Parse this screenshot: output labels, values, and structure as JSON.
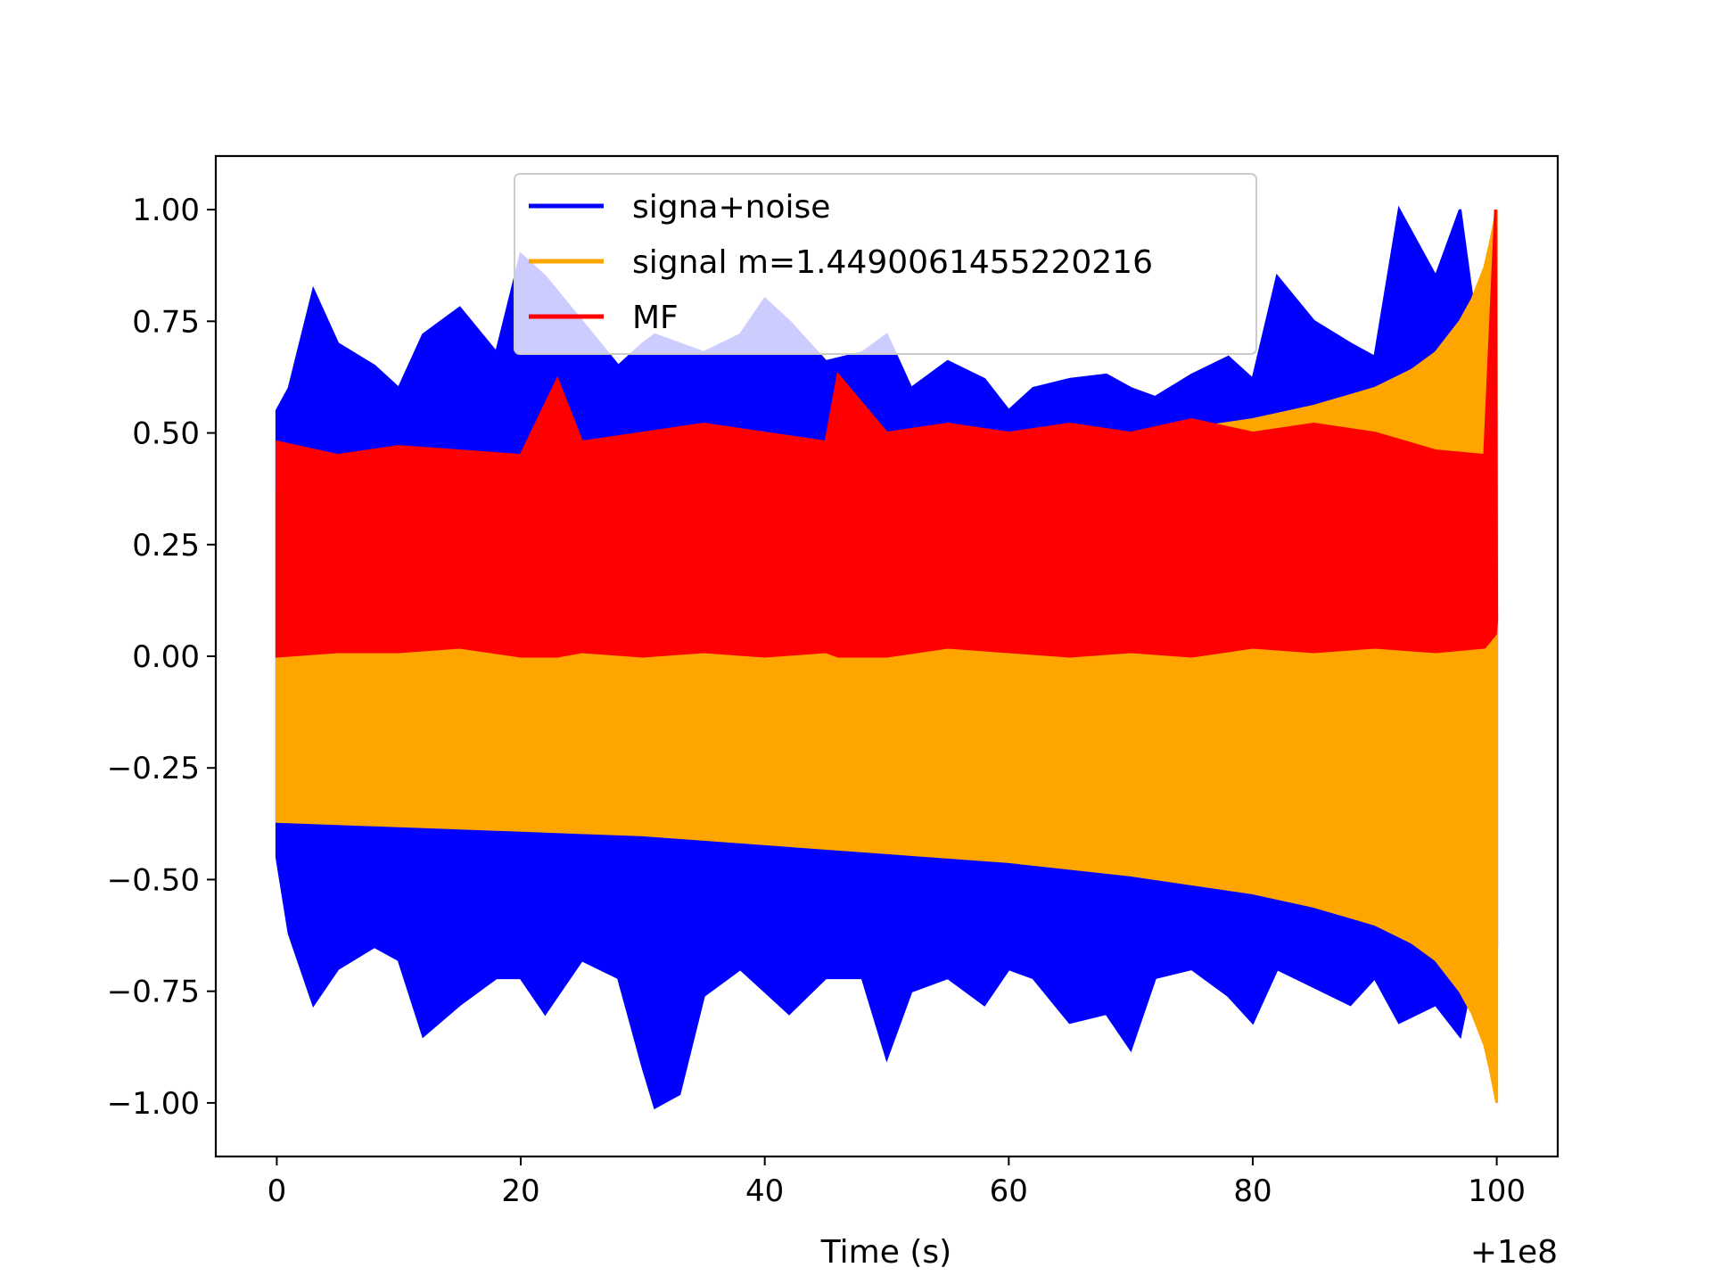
{
  "chart_data": {
    "type": "line",
    "title": "",
    "xlabel": "Time (s)",
    "ylabel": "",
    "x_offset_label": "+1e8",
    "xlim": [
      -5,
      105
    ],
    "ylim": [
      -1.12,
      1.12
    ],
    "xticks": [
      0,
      20,
      40,
      60,
      80,
      100
    ],
    "yticks": [
      1.0,
      0.75,
      0.5,
      0.25,
      0.0,
      -0.25,
      -0.5,
      -0.75,
      -1.0
    ],
    "xtick_labels": [
      "0",
      "20",
      "40",
      "60",
      "80",
      "100"
    ],
    "ytick_labels": [
      "1.00",
      "0.75",
      "0.50",
      "0.25",
      "0.00",
      "−0.25",
      "−0.50",
      "−0.75",
      "−1.00"
    ],
    "grid": false,
    "legend_position": "top-center",
    "series": [
      {
        "name": "signa+noise",
        "color": "#0000ff",
        "x": [
          0,
          1,
          3,
          5,
          8,
          10,
          12,
          15,
          18,
          20,
          22,
          25,
          28,
          30,
          31,
          33,
          35,
          38,
          40,
          42,
          45,
          48,
          50,
          52,
          55,
          58,
          60,
          62,
          65,
          68,
          70,
          72,
          75,
          78,
          80,
          82,
          85,
          88,
          90,
          92,
          95,
          97,
          98,
          100
        ],
        "upper": [
          0.55,
          0.6,
          0.82,
          0.7,
          0.65,
          0.6,
          0.72,
          0.78,
          0.68,
          0.9,
          0.85,
          0.75,
          0.65,
          0.7,
          0.72,
          0.7,
          0.68,
          0.72,
          0.8,
          0.75,
          0.66,
          0.68,
          0.72,
          0.6,
          0.66,
          0.62,
          0.55,
          0.6,
          0.62,
          0.63,
          0.6,
          0.58,
          0.63,
          0.67,
          0.62,
          0.85,
          0.75,
          0.7,
          0.67,
          1.0,
          0.85,
          1.0,
          0.8,
          0.55
        ],
        "lower": [
          -0.45,
          -0.62,
          -0.78,
          -0.7,
          -0.65,
          -0.68,
          -0.85,
          -0.78,
          -0.72,
          -0.72,
          -0.8,
          -0.68,
          -0.72,
          -0.92,
          -1.01,
          -0.98,
          -0.76,
          -0.7,
          -0.75,
          -0.8,
          -0.72,
          -0.72,
          -0.9,
          -0.75,
          -0.72,
          -0.78,
          -0.7,
          -0.72,
          -0.82,
          -0.8,
          -0.88,
          -0.72,
          -0.7,
          -0.76,
          -0.82,
          -0.7,
          -0.74,
          -0.78,
          -0.72,
          -0.82,
          -0.78,
          -0.85,
          -0.72,
          -0.65
        ]
      },
      {
        "name": "signal m=1.4490061455220216",
        "color": "#ffa500",
        "x": [
          0,
          10,
          20,
          30,
          40,
          50,
          60,
          70,
          80,
          85,
          90,
          93,
          95,
          97,
          98,
          99,
          99.5,
          100
        ],
        "upper": [
          0.37,
          0.38,
          0.39,
          0.4,
          0.42,
          0.44,
          0.46,
          0.49,
          0.53,
          0.56,
          0.6,
          0.64,
          0.68,
          0.75,
          0.8,
          0.87,
          0.93,
          1.0
        ],
        "lower": [
          -0.37,
          -0.38,
          -0.39,
          -0.4,
          -0.42,
          -0.44,
          -0.46,
          -0.49,
          -0.53,
          -0.56,
          -0.6,
          -0.64,
          -0.68,
          -0.75,
          -0.8,
          -0.87,
          -0.93,
          -1.0
        ]
      },
      {
        "name": "MF",
        "color": "#ff0000",
        "x": [
          0,
          5,
          10,
          15,
          20,
          23,
          25,
          30,
          35,
          40,
          45,
          46,
          50,
          55,
          60,
          65,
          70,
          75,
          80,
          85,
          90,
          95,
          99,
          99.9,
          100
        ],
        "upper": [
          0.48,
          0.45,
          0.47,
          0.46,
          0.45,
          0.62,
          0.48,
          0.5,
          0.52,
          0.5,
          0.48,
          0.63,
          0.5,
          0.52,
          0.5,
          0.52,
          0.5,
          0.53,
          0.5,
          0.52,
          0.5,
          0.46,
          0.45,
          1.0,
          0.08
        ],
        "lower": [
          0.0,
          0.01,
          0.01,
          0.02,
          0.0,
          0.0,
          0.01,
          0.0,
          0.01,
          0.0,
          0.01,
          0.0,
          0.0,
          0.02,
          0.01,
          0.0,
          0.01,
          0.0,
          0.02,
          0.01,
          0.02,
          0.01,
          0.02,
          0.05,
          0.08
        ]
      }
    ]
  }
}
